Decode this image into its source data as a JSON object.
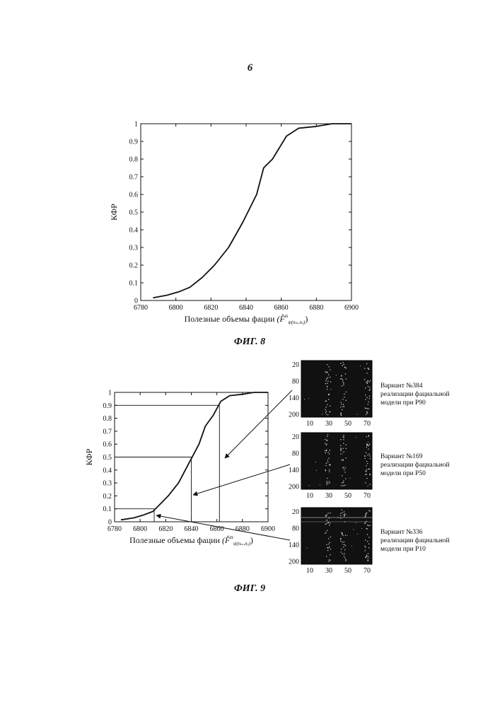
{
  "page": {
    "number": "6"
  },
  "figure8": {
    "caption": "ФИГ. 8"
  },
  "figure9": {
    "caption": "ФИГ. 9",
    "realizations": [
      {
        "lines": [
          "Вариант №384",
          "реализации фациальной",
          "модели при P90"
        ],
        "y_ticks": [
          "20",
          "80",
          "140",
          "200"
        ],
        "x_ticks": [
          "10",
          "30",
          "50",
          "70"
        ]
      },
      {
        "lines": [
          "Вариант №169",
          "реализации фациальной",
          "модели при P50"
        ],
        "y_ticks": [
          "20",
          "80",
          "140",
          "200"
        ],
        "x_ticks": [
          "10",
          "30",
          "50",
          "70"
        ]
      },
      {
        "lines": [
          "Вариант №336",
          "реализации фациальной",
          "модели при P10"
        ],
        "y_ticks": [
          "20",
          "80",
          "140",
          "200"
        ],
        "x_ticks": [
          "10",
          "30",
          "50",
          "70"
        ]
      }
    ]
  },
  "chart_data": [
    {
      "id": "fig8",
      "type": "line",
      "ylabel": "КФР",
      "xlabel": "Полезные объемы фации",
      "xlabel_formula": "(F̂",
      "xlabel_formula_sup": "ts",
      "xlabel_formula_sub": "ψ(nₘ,nⱼ)",
      "xlim": [
        6780,
        6900
      ],
      "ylim": [
        0,
        1
      ],
      "x_ticks": [
        "6780",
        "6800",
        "6820",
        "6840",
        "6860",
        "6880",
        "6900"
      ],
      "y_ticks": [
        "0",
        "0.1",
        "0.2",
        "0.3",
        "0.4",
        "0.5",
        "0.6",
        "0.7",
        "0.8",
        "0.9",
        "1"
      ],
      "grid": false,
      "series": [
        {
          "x": [
            6787,
            6795,
            6802,
            6808,
            6815,
            6822,
            6830,
            6838,
            6846,
            6850,
            6855,
            6863,
            6870,
            6880,
            6889,
            6900
          ],
          "y": [
            0.015,
            0.03,
            0.05,
            0.075,
            0.13,
            0.2,
            0.3,
            0.44,
            0.6,
            0.75,
            0.8,
            0.93,
            0.975,
            0.985,
            1.0,
            1.0
          ]
        }
      ]
    },
    {
      "id": "fig9",
      "type": "line",
      "ylabel": "КФР",
      "xlabel": "Полезные объемы фации",
      "xlabel_formula": "(F̂",
      "xlabel_formula_sup": "ts",
      "xlabel_formula_sub": "ψ(nₘ,nⱼ)",
      "xlim": [
        6780,
        6900
      ],
      "ylim": [
        0,
        1
      ],
      "x_ticks": [
        "6780",
        "6800",
        "6820",
        "6840",
        "6860",
        "6880",
        "6900"
      ],
      "y_ticks": [
        "0",
        "0.1",
        "0.2",
        "0.3",
        "0.4",
        "0.5",
        "0.6",
        "0.7",
        "0.8",
        "0.9",
        "1"
      ],
      "grid": false,
      "series": [
        {
          "x": [
            6785,
            6795,
            6802,
            6810,
            6815,
            6822,
            6830,
            6838,
            6846,
            6851,
            6857,
            6863,
            6870,
            6880,
            6889,
            6900
          ],
          "y": [
            0.015,
            0.03,
            0.05,
            0.08,
            0.13,
            0.2,
            0.3,
            0.45,
            0.6,
            0.74,
            0.82,
            0.93,
            0.975,
            0.985,
            1.0,
            1.0
          ]
        }
      ],
      "percentile_markers": [
        {
          "x": 6811,
          "y": 0.1
        },
        {
          "x": 6840,
          "y": 0.5
        },
        {
          "x": 6862,
          "y": 0.9
        }
      ]
    }
  ]
}
